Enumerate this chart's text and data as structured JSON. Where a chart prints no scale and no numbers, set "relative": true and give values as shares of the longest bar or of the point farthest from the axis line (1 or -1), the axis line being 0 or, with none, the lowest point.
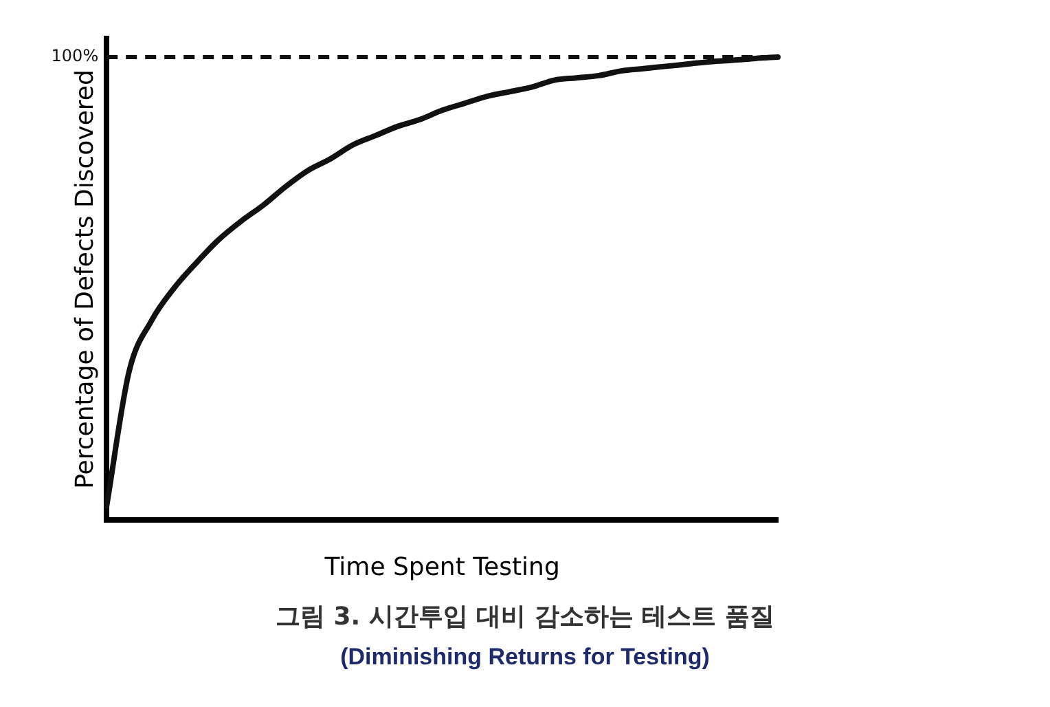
{
  "chart_data": {
    "type": "line",
    "title": "그림 3. 시간투입 대비 감소하는 테스트 품질",
    "subtitle": "(Diminishing Returns for Testing)",
    "xlabel": "Time Spent Testing",
    "ylabel": "Percentage of Defects Discovered",
    "relative": true,
    "grid": false,
    "legend": false,
    "marker": "none",
    "line_style": "solid",
    "categories": [
      null,
      null,
      null,
      null,
      null,
      null,
      null,
      null,
      null,
      null,
      null,
      null,
      null,
      null,
      null,
      null,
      null,
      null,
      null,
      null,
      null,
      null,
      null,
      null,
      null,
      null,
      null,
      null,
      null,
      null,
      null
    ],
    "series": [
      {
        "color": "#111111",
        "values": [
          0.03,
          0.32,
          0.43,
          0.5,
          0.555,
          0.605,
          0.645,
          0.68,
          0.72,
          0.755,
          0.78,
          0.81,
          0.83,
          0.85,
          0.865,
          0.885,
          0.9,
          0.915,
          0.925,
          0.935,
          0.95,
          0.955,
          0.96,
          0.97,
          0.975,
          0.98,
          0.985,
          0.99,
          0.993,
          0.997,
          1
        ]
      }
    ],
    "ref_lines": [
      {
        "axis": "y",
        "value": 1,
        "label": "100%",
        "color": "#111111",
        "line_style": "dashed"
      }
    ]
  }
}
